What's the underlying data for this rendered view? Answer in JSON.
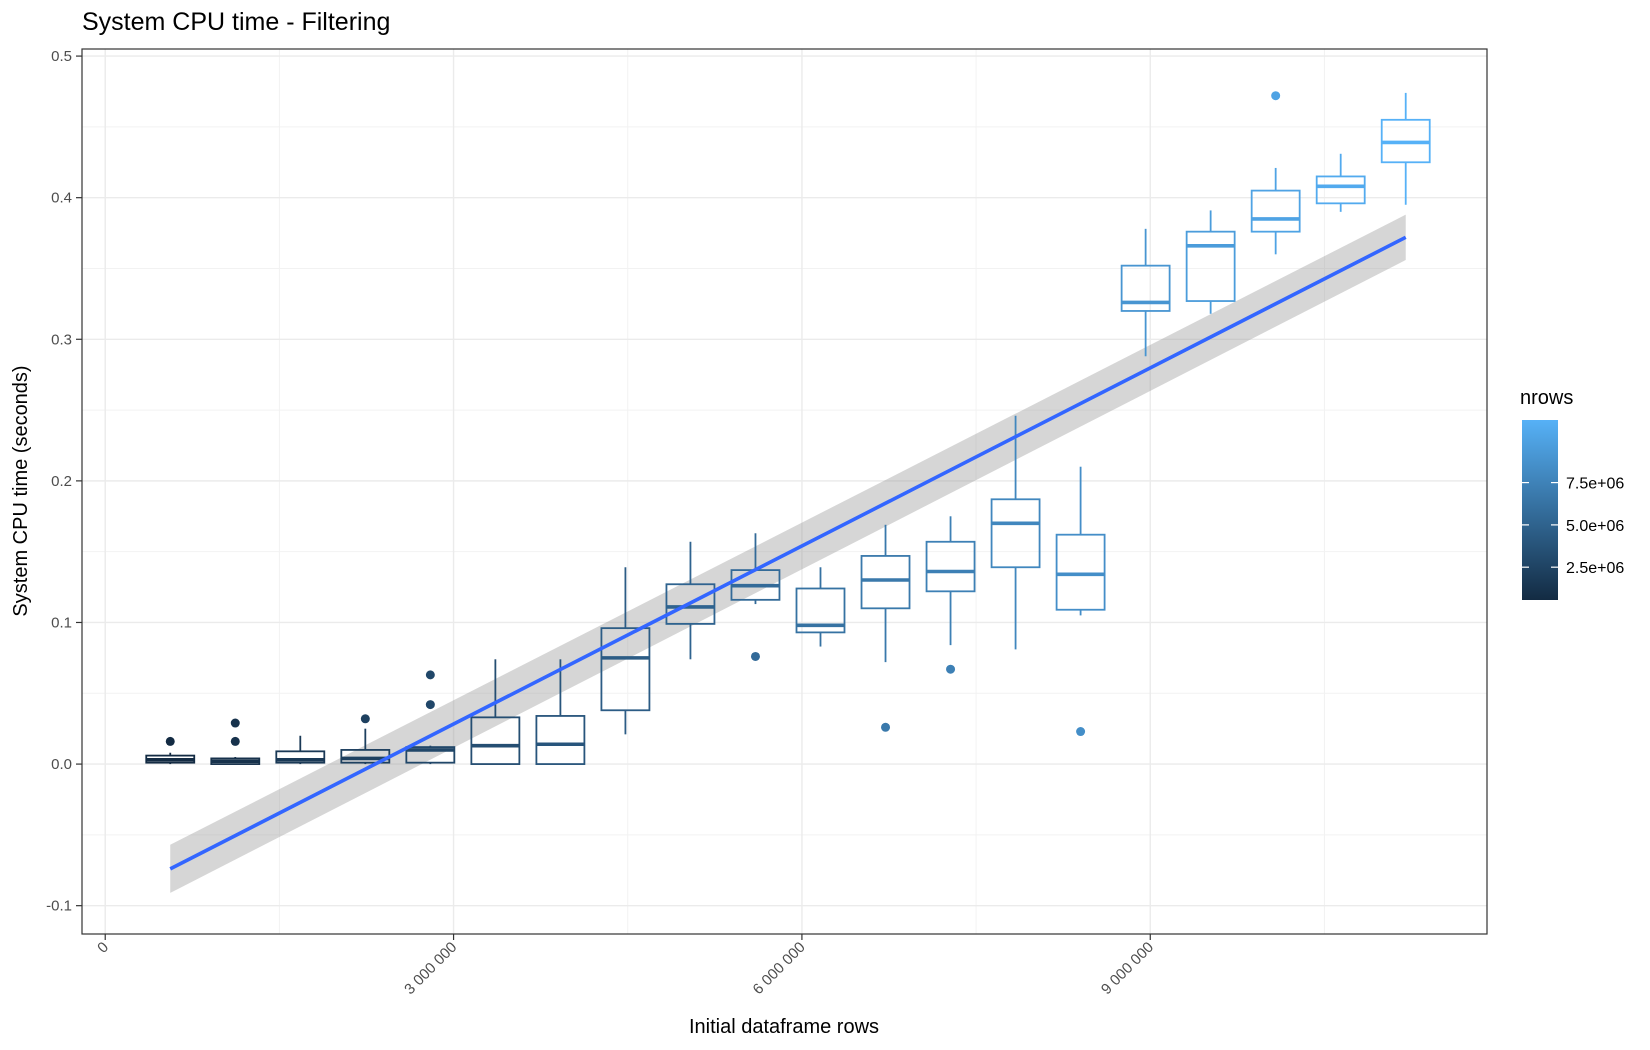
{
  "chart_data": {
    "type": "box",
    "title": "System CPU time - Filtering",
    "xlabel": "Initial dataframe rows",
    "ylabel": "System CPU time (seconds)",
    "xlim": [
      -200000,
      11900000
    ],
    "ylim": [
      -0.12,
      0.505
    ],
    "x_ticks": [
      {
        "value": 0,
        "label": "0"
      },
      {
        "value": 3000000,
        "label": "3 000 000"
      },
      {
        "value": 6000000,
        "label": "6 000 000"
      },
      {
        "value": 9000000,
        "label": "9 000 000"
      }
    ],
    "y_ticks": [
      {
        "value": -0.1,
        "label": "-0.1"
      },
      {
        "value": 0.0,
        "label": "0.0"
      },
      {
        "value": 0.1,
        "label": "0.1"
      },
      {
        "value": 0.2,
        "label": "0.2"
      },
      {
        "value": 0.3,
        "label": "0.3"
      },
      {
        "value": 0.4,
        "label": "0.4"
      },
      {
        "value": 0.5,
        "label": "0.5"
      }
    ],
    "grid": true,
    "legend": {
      "title": "nrows",
      "position": "right",
      "type": "colorbar",
      "color_low": "#132b43",
      "color_high": "#56b1f7",
      "range": [
        560000,
        11200000
      ],
      "breaks": [
        {
          "value": 2500000,
          "label": "2.5e+06"
        },
        {
          "value": 5000000,
          "label": "5.0e+06"
        },
        {
          "value": 7500000,
          "label": "7.5e+06"
        }
      ]
    },
    "boxes": [
      {
        "x": 560000,
        "min": 0.0,
        "q1": 0.001,
        "median": 0.003,
        "q3": 0.006,
        "max": 0.008,
        "outliers": [
          0.016
        ]
      },
      {
        "x": 1120000,
        "min": 0.0,
        "q1": 0.0,
        "median": 0.002,
        "q3": 0.004,
        "max": 0.005,
        "outliers": [
          0.016,
          0.029
        ]
      },
      {
        "x": 1680000,
        "min": 0.0,
        "q1": 0.001,
        "median": 0.003,
        "q3": 0.009,
        "max": 0.02,
        "outliers": []
      },
      {
        "x": 2240000,
        "min": 0.0,
        "q1": 0.001,
        "median": 0.004,
        "q3": 0.01,
        "max": 0.025,
        "outliers": [
          0.032
        ]
      },
      {
        "x": 2800000,
        "min": 0.0,
        "q1": 0.001,
        "median": 0.01,
        "q3": 0.012,
        "max": 0.013,
        "outliers": [
          0.042,
          0.063
        ]
      },
      {
        "x": 3360000,
        "min": 0.0,
        "q1": 0.0,
        "median": 0.013,
        "q3": 0.033,
        "max": 0.074,
        "outliers": []
      },
      {
        "x": 3920000,
        "min": 0.0,
        "q1": 0.0,
        "median": 0.014,
        "q3": 0.034,
        "max": 0.074,
        "outliers": []
      },
      {
        "x": 4480000,
        "min": 0.021,
        "q1": 0.038,
        "median": 0.075,
        "q3": 0.096,
        "max": 0.139,
        "outliers": []
      },
      {
        "x": 5040000,
        "min": 0.074,
        "q1": 0.099,
        "median": 0.111,
        "q3": 0.127,
        "max": 0.157,
        "outliers": []
      },
      {
        "x": 5600000,
        "min": 0.113,
        "q1": 0.116,
        "median": 0.126,
        "q3": 0.137,
        "max": 0.163,
        "outliers": [
          0.076
        ]
      },
      {
        "x": 6160000,
        "min": 0.083,
        "q1": 0.093,
        "median": 0.098,
        "q3": 0.124,
        "max": 0.139,
        "outliers": []
      },
      {
        "x": 6720000,
        "min": 0.072,
        "q1": 0.11,
        "median": 0.13,
        "q3": 0.147,
        "max": 0.169,
        "outliers": [
          0.026
        ]
      },
      {
        "x": 7280000,
        "min": 0.084,
        "q1": 0.122,
        "median": 0.136,
        "q3": 0.157,
        "max": 0.175,
        "outliers": [
          0.067
        ]
      },
      {
        "x": 7840000,
        "min": 0.081,
        "q1": 0.139,
        "median": 0.17,
        "q3": 0.187,
        "max": 0.246,
        "outliers": []
      },
      {
        "x": 8400000,
        "min": 0.105,
        "q1": 0.109,
        "median": 0.134,
        "q3": 0.162,
        "max": 0.21,
        "outliers": [
          0.023
        ]
      },
      {
        "x": 8960000,
        "min": 0.288,
        "q1": 0.32,
        "median": 0.326,
        "q3": 0.352,
        "max": 0.378,
        "outliers": []
      },
      {
        "x": 9520000,
        "min": 0.318,
        "q1": 0.327,
        "median": 0.366,
        "q3": 0.376,
        "max": 0.391,
        "outliers": []
      },
      {
        "x": 10080000,
        "min": 0.36,
        "q1": 0.376,
        "median": 0.385,
        "q3": 0.405,
        "max": 0.421,
        "outliers": [
          0.472
        ]
      },
      {
        "x": 10640000,
        "min": 0.39,
        "q1": 0.396,
        "median": 0.408,
        "q3": 0.415,
        "max": 0.431,
        "outliers": []
      },
      {
        "x": 11200000,
        "min": 0.395,
        "q1": 0.425,
        "median": 0.439,
        "q3": 0.455,
        "max": 0.474,
        "outliers": []
      }
    ],
    "trend_line": {
      "x": [
        560000,
        11200000
      ],
      "y": [
        -0.074,
        0.372
      ],
      "color": "#3366ff",
      "band_lower": [
        -0.091,
        0.356
      ],
      "band_upper": [
        -0.057,
        0.388
      ]
    }
  }
}
